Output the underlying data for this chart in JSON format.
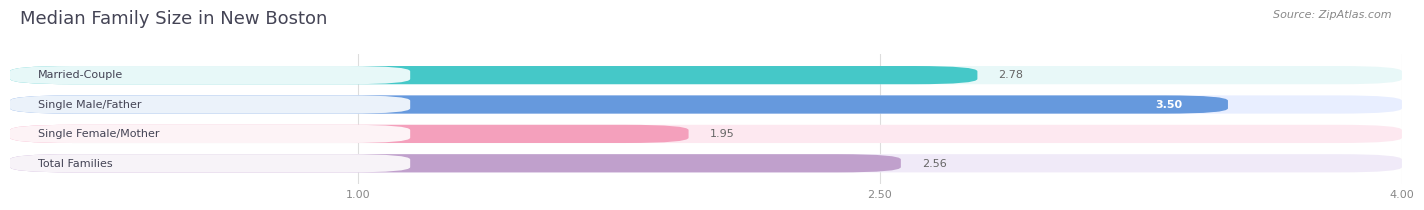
{
  "title": "Median Family Size in New Boston",
  "source": "Source: ZipAtlas.com",
  "categories": [
    "Married-Couple",
    "Single Male/Father",
    "Single Female/Mother",
    "Total Families"
  ],
  "values": [
    2.78,
    3.5,
    1.95,
    2.56
  ],
  "bar_colors": [
    "#45C8C8",
    "#6699DD",
    "#F4A0BC",
    "#C0A0CC"
  ],
  "bar_bg_colors": [
    "#E8F8F8",
    "#E8EEFF",
    "#FDE8F0",
    "#F0EAF8"
  ],
  "value_inside": [
    false,
    true,
    false,
    false
  ],
  "xlim": [
    0,
    4.0
  ],
  "xticks": [
    1.0,
    2.5,
    4.0
  ],
  "xticklabels": [
    "1.00",
    "2.50",
    "4.00"
  ],
  "title_fontsize": 13,
  "label_fontsize": 8,
  "value_fontsize": 8,
  "source_fontsize": 8,
  "bar_height": 0.62,
  "background_color": "#ffffff"
}
